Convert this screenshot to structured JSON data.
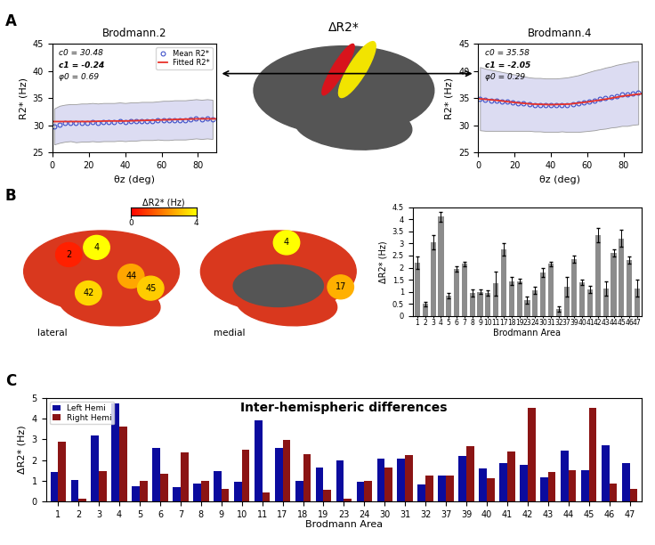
{
  "panel_labels": [
    "A",
    "B",
    "C"
  ],
  "chart_data": [
    {
      "type": "line",
      "title": "Brodmann.2",
      "x_label": "θz (deg)",
      "y_label": "R2* (Hz)",
      "xlim": [
        0,
        90
      ],
      "xticks": [
        0,
        20,
        40,
        60,
        80
      ],
      "ylim": [
        25,
        45
      ],
      "yticks": [
        25,
        30,
        35,
        40,
        45
      ],
      "annotations": [
        "c0 = 30.48",
        "c1 = -0.24",
        "φ0 = 0.69"
      ],
      "legend": "upper right",
      "series": [
        {
          "name": "Mean R2*",
          "type": "scatter",
          "marker": "o",
          "color": "#2b3fc4",
          "x": [
            1,
            4,
            7,
            10,
            13,
            16,
            19,
            22,
            25,
            28,
            31,
            34,
            37,
            40,
            43,
            46,
            49,
            52,
            55,
            58,
            61,
            64,
            67,
            70,
            73,
            76,
            79,
            82,
            85,
            88
          ],
          "values": [
            29.8,
            30.2,
            30.4,
            30.5,
            30.4,
            30.5,
            30.5,
            30.6,
            30.5,
            30.6,
            30.6,
            30.6,
            30.7,
            30.6,
            30.7,
            30.7,
            30.8,
            30.8,
            30.8,
            30.9,
            30.9,
            30.9,
            31.0,
            31.0,
            31.0,
            31.1,
            31.2,
            31.1,
            31.2,
            31.1
          ],
          "error": [
            3.3,
            3.4,
            3.4,
            3.4,
            3.5,
            3.5,
            3.5,
            3.5,
            3.5,
            3.5,
            3.5,
            3.5,
            3.5,
            3.5,
            3.5,
            3.5,
            3.5,
            3.5,
            3.5,
            3.5,
            3.6,
            3.6,
            3.6,
            3.6,
            3.6,
            3.6,
            3.6,
            3.6,
            3.6,
            3.6
          ]
        },
        {
          "name": "Fitted R2*",
          "type": "line",
          "color": "#e8322a",
          "x": [
            0,
            10,
            20,
            30,
            40,
            50,
            60,
            70,
            80,
            90
          ],
          "values": [
            30.7,
            30.7,
            30.7,
            30.8,
            30.8,
            30.9,
            31.0,
            31.1,
            31.2,
            31.2
          ]
        }
      ]
    },
    {
      "type": "brain_map",
      "title": "ΔR2*"
    },
    {
      "type": "line",
      "title": "Brodmann.4",
      "x_label": "θz (deg)",
      "y_label": "R2* (Hz)",
      "xlim": [
        0,
        90
      ],
      "xticks": [
        0,
        20,
        40,
        60,
        80
      ],
      "ylim": [
        25,
        45
      ],
      "yticks": [
        25,
        30,
        35,
        40,
        45
      ],
      "annotations": [
        "c0 = 35.58",
        "c1 = -2.05",
        "φ0 = 0.29"
      ],
      "series": [
        {
          "type": "scatter",
          "marker": "o",
          "color": "#2b3fc4",
          "x": [
            1,
            4,
            7,
            10,
            13,
            16,
            19,
            22,
            25,
            28,
            31,
            34,
            37,
            40,
            43,
            46,
            49,
            52,
            55,
            58,
            61,
            64,
            67,
            70,
            73,
            76,
            79,
            82,
            85,
            88
          ],
          "values": [
            34.9,
            34.7,
            34.6,
            34.5,
            34.4,
            34.3,
            34.2,
            34.1,
            34.0,
            33.9,
            33.8,
            33.8,
            33.7,
            33.7,
            33.7,
            33.8,
            33.8,
            33.9,
            34.0,
            34.2,
            34.4,
            34.6,
            34.8,
            35.0,
            35.2,
            35.4,
            35.6,
            35.7,
            35.9,
            36.0
          ],
          "error": [
            5.8,
            5.7,
            5.6,
            5.5,
            5.4,
            5.3,
            5.2,
            5.1,
            5.0,
            4.9,
            4.9,
            4.9,
            4.9,
            4.9,
            4.9,
            4.9,
            5.0,
            5.1,
            5.2,
            5.3,
            5.4,
            5.5,
            5.5,
            5.6,
            5.6,
            5.7,
            5.7,
            5.8,
            5.8,
            5.8
          ]
        },
        {
          "type": "line",
          "color": "#e8322a",
          "x": [
            0,
            10,
            20,
            30,
            40,
            50,
            60,
            70,
            80,
            90
          ],
          "values": [
            34.9,
            34.6,
            34.2,
            33.9,
            33.8,
            33.9,
            34.3,
            34.8,
            35.4,
            35.8
          ]
        }
      ]
    },
    {
      "type": "brain_map",
      "views": [
        {
          "label": "lateral",
          "regions": [
            2,
            4,
            42,
            44,
            45
          ]
        },
        {
          "label": "medial",
          "regions": [
            4,
            17
          ]
        }
      ],
      "colorbar": {
        "label": "ΔR2* (Hz)",
        "lim": [
          0,
          4
        ],
        "ticks": [
          0,
          4
        ]
      }
    },
    {
      "type": "bar",
      "x_label": "Brodmann Area",
      "y_label": "ΔR2* (Hz)",
      "color": "#8c8c8c",
      "categories": [
        "1",
        "2",
        "3",
        "4",
        "5",
        "6",
        "7",
        "8",
        "9",
        "10",
        "11",
        "17",
        "18",
        "19",
        "23",
        "24",
        "30",
        "31",
        "32",
        "37",
        "39",
        "40",
        "41",
        "42",
        "43",
        "44",
        "45",
        "46",
        "47"
      ],
      "values": [
        2.2,
        0.5,
        3.05,
        4.1,
        0.85,
        1.95,
        2.15,
        0.95,
        1.0,
        0.95,
        1.35,
        2.75,
        1.45,
        1.45,
        0.65,
        1.05,
        1.8,
        2.15,
        0.3,
        1.2,
        2.35,
        1.4,
        1.1,
        3.35,
        1.15,
        2.6,
        3.2,
        2.3,
        1.15
      ],
      "error": [
        0.25,
        0.1,
        0.3,
        0.2,
        0.1,
        0.1,
        0.1,
        0.15,
        0.1,
        0.1,
        0.5,
        0.25,
        0.15,
        0.1,
        0.15,
        0.15,
        0.2,
        0.1,
        0.1,
        0.4,
        0.15,
        0.1,
        0.15,
        0.3,
        0.3,
        0.15,
        0.35,
        0.15,
        0.35
      ],
      "ylim": [
        0,
        4.5
      ],
      "yticks": [
        0,
        0.5,
        1,
        1.5,
        2,
        2.5,
        3,
        3.5,
        4,
        4.5
      ]
    },
    {
      "type": "bar",
      "title": "Inter-hemispheric differences",
      "x_label": "Brodmann Area",
      "y_label": "ΔR2* (Hz)",
      "categories": [
        "1",
        "2",
        "3",
        "4",
        "5",
        "6",
        "7",
        "8",
        "9",
        "10",
        "11",
        "17",
        "18",
        "19",
        "23",
        "24",
        "30",
        "31",
        "32",
        "37",
        "39",
        "40",
        "41",
        "42",
        "43",
        "44",
        "45",
        "46",
        "47"
      ],
      "legend": "upper left",
      "ylim": [
        0,
        5
      ],
      "yticks": [
        0,
        1,
        2,
        3,
        4,
        5
      ],
      "series": [
        {
          "name": "Left Hemi",
          "color": "#0b0b9e",
          "values": [
            1.4,
            1.05,
            3.2,
            4.75,
            0.75,
            2.6,
            0.7,
            0.85,
            1.45,
            0.95,
            3.9,
            2.6,
            1.0,
            1.65,
            2.0,
            0.95,
            2.05,
            2.05,
            0.8,
            1.25,
            2.2,
            1.6,
            1.85,
            1.75,
            1.15,
            2.45,
            1.5,
            2.7,
            1.85
          ]
        },
        {
          "name": "Right Hemi",
          "color": "#8b1414",
          "values": [
            2.9,
            0.15,
            1.45,
            3.6,
            1.0,
            1.35,
            2.35,
            1.0,
            0.6,
            2.5,
            0.45,
            2.95,
            2.3,
            0.55,
            0.15,
            1.0,
            1.65,
            2.25,
            1.25,
            1.25,
            2.65,
            1.1,
            2.4,
            4.5,
            1.4,
            1.5,
            4.5,
            0.85,
            0.6
          ]
        }
      ]
    }
  ]
}
